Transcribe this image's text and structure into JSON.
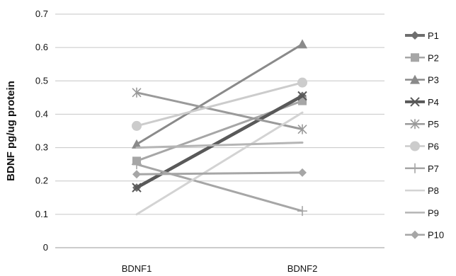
{
  "chart_data": {
    "type": "line",
    "categories": [
      "BDNF1",
      "BDNF2"
    ],
    "ylabel": "BDNF pg/ug protein",
    "xlabel": "",
    "ylim": [
      0,
      0.7
    ],
    "yticks": [
      "0",
      "0.1",
      "0.2",
      "0.3",
      "0.4",
      "0.5",
      "0.6",
      "0.7"
    ],
    "grid": "horizontal",
    "legend_position": "right",
    "series": [
      {
        "name": "P1",
        "values": [
          0.18,
          0.455
        ],
        "color": "#6e6e6e",
        "marker": "diamond"
      },
      {
        "name": "P2",
        "values": [
          0.26,
          0.44
        ],
        "color": "#a6a6a6",
        "marker": "square"
      },
      {
        "name": "P3",
        "values": [
          0.31,
          0.61
        ],
        "color": "#8a8a8a",
        "marker": "triangle"
      },
      {
        "name": "P4",
        "values": [
          0.18,
          0.455
        ],
        "color": "#595959",
        "marker": "x"
      },
      {
        "name": "P5",
        "values": [
          0.465,
          0.355
        ],
        "color": "#9a9a9a",
        "marker": "star"
      },
      {
        "name": "P6",
        "values": [
          0.365,
          0.495
        ],
        "color": "#cccccc",
        "marker": "circle"
      },
      {
        "name": "P7",
        "values": [
          0.25,
          0.11
        ],
        "color": "#a6a6a6",
        "marker": "plus"
      },
      {
        "name": "P8",
        "values": [
          0.1,
          0.405
        ],
        "color": "#d3d3d3",
        "marker": "none"
      },
      {
        "name": "P9",
        "values": [
          0.3,
          0.315
        ],
        "color": "#b5b5b5",
        "marker": "none"
      },
      {
        "name": "P10",
        "values": [
          0.22,
          0.225
        ],
        "color": "#a6a6a6",
        "marker": "diamond"
      }
    ]
  }
}
